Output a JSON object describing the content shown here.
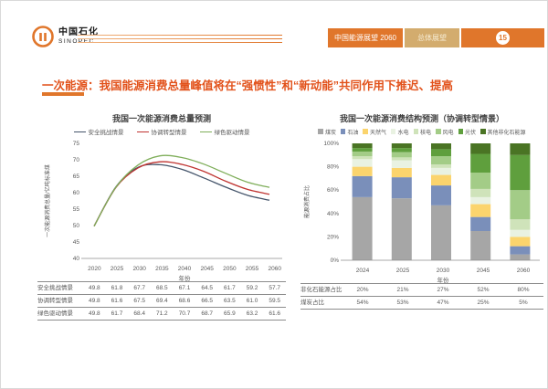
{
  "header": {
    "brand_cn": "中国石化",
    "brand_en": "SINOPEC",
    "badge_main": "中国能源展望 2060",
    "badge_secondary": "总体展望",
    "page_number": "15"
  },
  "title": "一次能源：我国能源消费总量峰值将在“强惯性”和“新动能”共同作用下推迟、提高",
  "colors": {
    "accent_orange": "#e0762b",
    "badge_tan": "#d3ac6e",
    "title_red": "#e2521b",
    "axis_gray": "#808080",
    "text_gray": "#595959"
  },
  "chart_data": [
    {
      "type": "line",
      "title": "我国一次能源消费总量预测",
      "ylabel": "一次能源消费总量/亿吨标准煤",
      "xlabel": "年份",
      "x": [
        "2020",
        "2025",
        "2030",
        "2035",
        "2040",
        "2045",
        "2050",
        "2055",
        "2060"
      ],
      "ylim": [
        40,
        75
      ],
      "ytick_step": 5,
      "grid": false,
      "legend_position": "top",
      "series": [
        {
          "name": "安全挑战情景",
          "color": "#44546a",
          "values": [
            49.8,
            61.8,
            67.7,
            68.5,
            67.1,
            64.5,
            61.7,
            59.2,
            57.7
          ]
        },
        {
          "name": "协调转型情景",
          "color": "#bf3330",
          "values": [
            49.8,
            61.6,
            67.5,
            69.4,
            68.6,
            66.5,
            63.5,
            61.0,
            59.5
          ]
        },
        {
          "name": "绿色驱动情景",
          "color": "#7fae5a",
          "values": [
            49.8,
            61.7,
            68.4,
            71.2,
            70.7,
            68.7,
            65.9,
            63.2,
            61.6
          ]
        }
      ]
    },
    {
      "type": "stacked-bar",
      "title": "我国一次能源消费结构预测（协调转型情景）",
      "ylabel": "能源消费占比",
      "xlabel": "年份",
      "categories": [
        "2024",
        "2025",
        "2030",
        "2045",
        "2060"
      ],
      "ylim": [
        0,
        100
      ],
      "ytick_step": 20,
      "ytick_suffix": "%",
      "grid": false,
      "legend_position": "top",
      "series": [
        {
          "name": "煤炭",
          "color": "#a6a6a6",
          "values": [
            54,
            53,
            47,
            25,
            5
          ]
        },
        {
          "name": "石油",
          "color": "#7a8fba",
          "values": [
            18,
            18,
            17,
            12,
            7
          ]
        },
        {
          "name": "天然气",
          "color": "#fbd46d",
          "values": [
            8,
            8,
            9,
            11,
            8
          ]
        },
        {
          "name": "水电",
          "color": "#e9f2e2",
          "values": [
            6.5,
            6.5,
            6,
            6,
            6
          ]
        },
        {
          "name": "核电",
          "color": "#cfe3ba",
          "values": [
            2.5,
            2.5,
            3,
            7,
            9
          ]
        },
        {
          "name": "风电",
          "color": "#a3cc87",
          "values": [
            4,
            4.5,
            7,
            14,
            25
          ]
        },
        {
          "name": "光伏",
          "color": "#5f9f3d",
          "values": [
            3,
            3.5,
            6,
            16,
            30
          ]
        },
        {
          "name": "其他非化石能源",
          "color": "#4a7424",
          "values": [
            4,
            4,
            5,
            9,
            10
          ]
        }
      ],
      "summary_rows": [
        {
          "label": "非化石能源占比",
          "values": [
            "20%",
            "21%",
            "27%",
            "52%",
            "80%"
          ]
        },
        {
          "label": "煤炭占比",
          "values": [
            "54%",
            "53%",
            "47%",
            "25%",
            "5%"
          ]
        }
      ]
    }
  ]
}
